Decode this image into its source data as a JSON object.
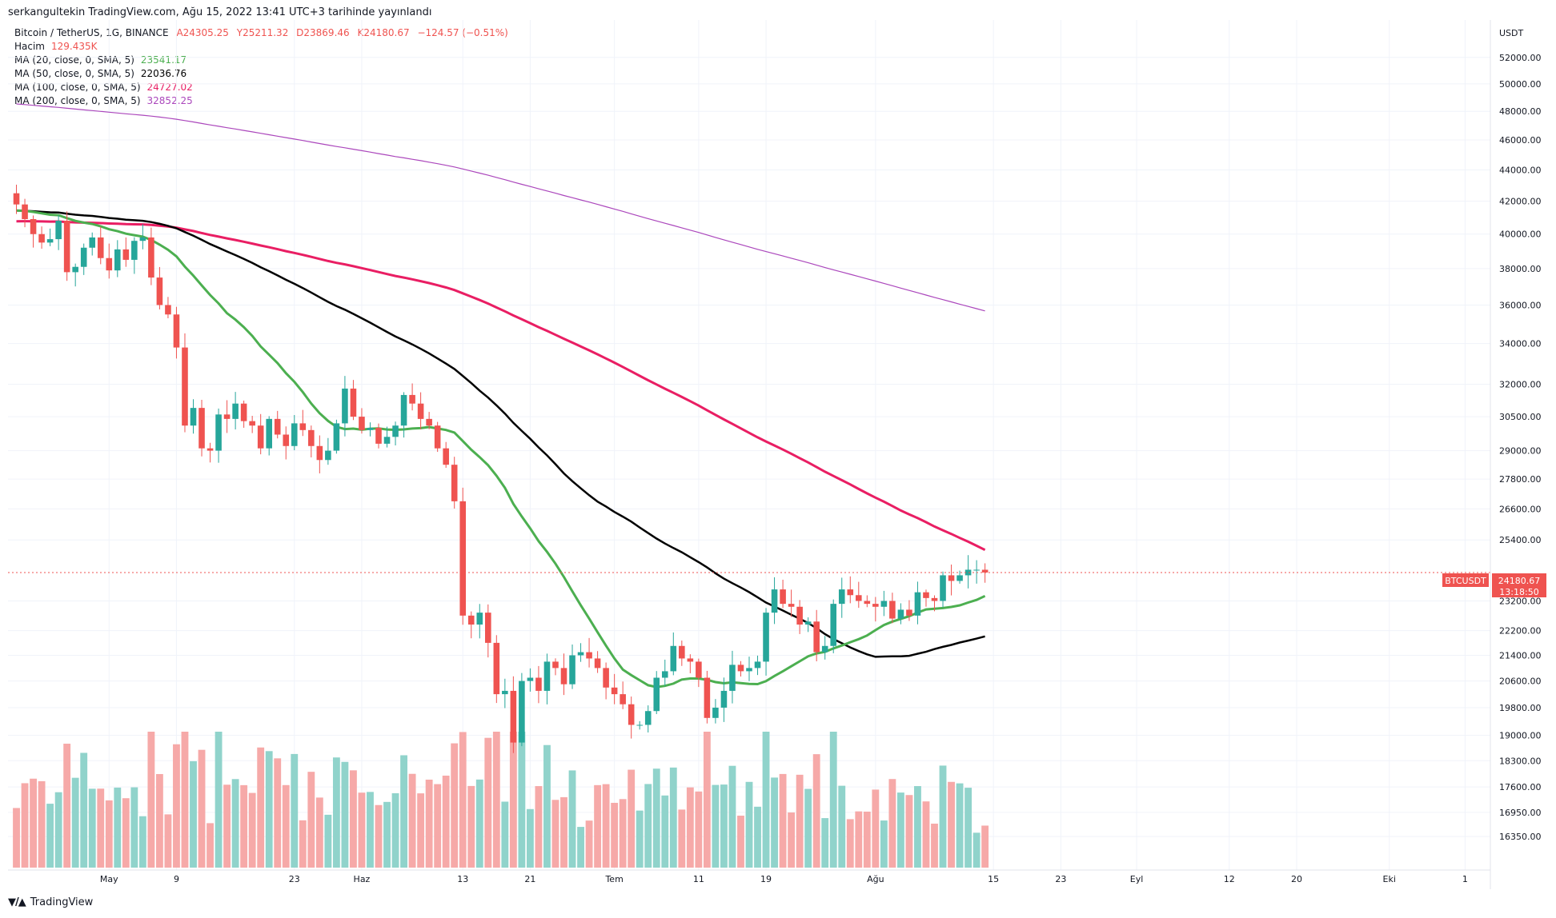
{
  "header": {
    "published": "serkangultekin TradingView.com, Ağu 15, 2022 13:41 UTC+3 tarihinde yayınlandı"
  },
  "legend": {
    "symbol": "Bitcoin / TetherUS, 1G, BINANCE",
    "ohlc": {
      "o": "A24305.25",
      "h": "Y25211.32",
      "l": "D23869.46",
      "c": "K24180.67",
      "chg": "−124.57 (−0.51%)"
    },
    "volume_label": "Hacim",
    "volume_value": "129.435K",
    "ma20_label": "MA (20, close, 0, SMA, 5)",
    "ma20_value": "23541.17",
    "ma50_label": "MA (50, close, 0, SMA, 5)",
    "ma50_value": "22036.76",
    "ma100_label": "MA (100, close, 0, SMA, 5)",
    "ma100_value": "24727.02",
    "ma200_label": "MA (200, close, 0, SMA, 5)",
    "ma200_value": "32852.25"
  },
  "price_scale": {
    "currency": "USDT",
    "badge_symbol": "BTCUSDT",
    "badge_price": "24180.67",
    "badge_countdown": "13:18:50"
  },
  "footer": {
    "brand": "TradingView"
  },
  "colors": {
    "up": "#26a69a",
    "down": "#ef5350",
    "up_vol": "#90d3cb",
    "down_vol": "#f6a9a8",
    "ma20": "#4caf50",
    "ma50": "#000000",
    "ma100": "#e91e63",
    "ma200": "#ab47bc"
  },
  "chart_data": {
    "type": "candlestick",
    "y_scale": "log",
    "y_ticks": [
      "52000.00",
      "50000.00",
      "48000.00",
      "46000.00",
      "44000.00",
      "42000.00",
      "40000.00",
      "38000.00",
      "36000.00",
      "34000.00",
      "32000.00",
      "30500.00",
      "29000.00",
      "27800.00",
      "26600.00",
      "25400.00",
      "23200.00",
      "22200.00",
      "21400.00",
      "20600.00",
      "19800.00",
      "19000.00",
      "18300.00",
      "17600.00",
      "16950.00",
      "16350.00"
    ],
    "x_ticks": [
      {
        "i": 11,
        "label": "May"
      },
      {
        "i": 19,
        "label": "9"
      },
      {
        "i": 33,
        "label": "23"
      },
      {
        "i": 41,
        "label": "Haz"
      },
      {
        "i": 53,
        "label": "13"
      },
      {
        "i": 61,
        "label": "21"
      },
      {
        "i": 71,
        "label": "Tem"
      },
      {
        "i": 81,
        "label": "11"
      },
      {
        "i": 89,
        "label": "19"
      },
      {
        "i": 102,
        "label": "Ağu"
      },
      {
        "i": 116,
        "label": "15"
      },
      {
        "i": 124,
        "label": "23"
      },
      {
        "i": 133,
        "label": "Eyl"
      },
      {
        "i": 144,
        "label": "12"
      },
      {
        "i": 152,
        "label": "20"
      },
      {
        "i": 163,
        "label": "Eki"
      },
      {
        "i": 172,
        "label": "1"
      }
    ],
    "x_range": [
      -1,
      175
    ],
    "y_range": [
      15800,
      54000
    ],
    "close": [
      41800,
      40900,
      40000,
      39500,
      39700,
      40800,
      37800,
      38100,
      39200,
      39800,
      38600,
      37900,
      39100,
      38500,
      39600,
      39800,
      37500,
      36000,
      35500,
      33800,
      30100,
      30900,
      29100,
      29000,
      30600,
      30400,
      31100,
      30300,
      30100,
      29100,
      30400,
      29700,
      29200,
      30200,
      29900,
      29200,
      28600,
      29000,
      30200,
      31800,
      30500,
      29900,
      30000,
      29300,
      29600,
      30100,
      31500,
      31100,
      30400,
      30100,
      29100,
      28400,
      26900,
      22700,
      22400,
      22800,
      21800,
      20200,
      20300,
      18800,
      20600,
      20700,
      20300,
      21200,
      21000,
      20500,
      21400,
      21500,
      21300,
      21000,
      20400,
      20200,
      19900,
      19300,
      19300,
      19700,
      20700,
      20900,
      21700,
      21300,
      21200,
      20700,
      19500,
      19800,
      20300,
      21100,
      20900,
      21000,
      21200,
      22800,
      23600,
      23100,
      23000,
      22400,
      22500,
      21500,
      21700,
      23100,
      23600,
      23400,
      23200,
      23100,
      23000,
      23200,
      22600,
      22900,
      22700,
      23500,
      23300,
      23200,
      24100,
      23900,
      24100,
      24300,
      24300,
      24200
    ]
  }
}
